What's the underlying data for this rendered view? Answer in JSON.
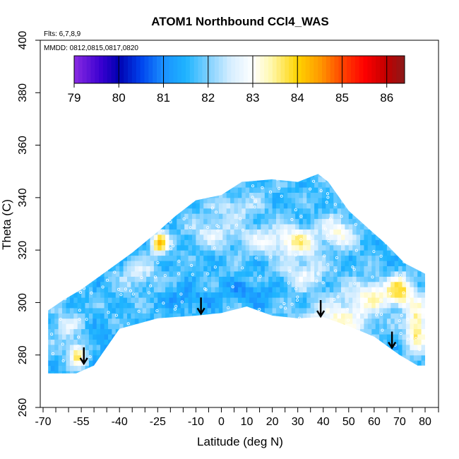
{
  "chart_data": {
    "type": "heatmap",
    "title": "ATOM1 Northbound CCl4_WAS",
    "subtitle_flights": "Flts: 6,7,8,9",
    "subtitle_dates": "MMDD: 0812,0815,0817,0820",
    "xlabel": "Latitude (deg N)",
    "ylabel": "Theta (C)",
    "xlim": [
      -70,
      80
    ],
    "ylim": [
      260,
      400
    ],
    "x_tick_labels": [
      "-70",
      "-55",
      "-40",
      "-25",
      "-10",
      "0",
      "10",
      "20",
      "30",
      "40",
      "50",
      "60",
      "70",
      "80"
    ],
    "x_tick_values": [
      -70,
      -55,
      -40,
      -25,
      -10,
      0,
      10,
      20,
      30,
      40,
      50,
      60,
      70,
      80
    ],
    "x_minor_ticks": [
      -65,
      -60,
      -50,
      -45,
      -35,
      -30,
      -20,
      -15,
      -5,
      5,
      15,
      25,
      35,
      45,
      55,
      65,
      75
    ],
    "y_tick_labels": [
      "260",
      "280",
      "300",
      "320",
      "340",
      "360",
      "380",
      "400"
    ],
    "y_tick_values": [
      260,
      280,
      300,
      320,
      340,
      360,
      380,
      400
    ],
    "colorbar": {
      "min": 79,
      "max": 86.4,
      "tick_labels": [
        "79",
        "80",
        "81",
        "82",
        "83",
        "84",
        "85",
        "86"
      ],
      "tick_values": [
        79,
        80,
        81,
        82,
        83,
        84,
        85,
        86
      ],
      "stops": [
        {
          "value": 79.0,
          "color": "#8a2be2"
        },
        {
          "value": 79.6,
          "color": "#3a00d0"
        },
        {
          "value": 80.0,
          "color": "#0000b0"
        },
        {
          "value": 80.5,
          "color": "#0044ee"
        },
        {
          "value": 81.0,
          "color": "#1a90ff"
        },
        {
          "value": 81.5,
          "color": "#1eb4ff"
        },
        {
          "value": 82.0,
          "color": "#7fd0ff"
        },
        {
          "value": 82.5,
          "color": "#d6eeff"
        },
        {
          "value": 83.0,
          "color": "#ffffff"
        },
        {
          "value": 83.4,
          "color": "#fff8b0"
        },
        {
          "value": 84.0,
          "color": "#ffd400"
        },
        {
          "value": 84.5,
          "color": "#ff9a00"
        },
        {
          "value": 85.0,
          "color": "#ff4500"
        },
        {
          "value": 85.5,
          "color": "#ff0000"
        },
        {
          "value": 86.0,
          "color": "#c00000"
        },
        {
          "value": 86.4,
          "color": "#8b1a1a"
        }
      ]
    },
    "domain_envelope": {
      "lower": [
        [
          -68,
          273
        ],
        [
          -57,
          273
        ],
        [
          -50,
          276
        ],
        [
          -40,
          290
        ],
        [
          -25,
          294
        ],
        [
          -10,
          295
        ],
        [
          0,
          296
        ],
        [
          10,
          298.5
        ],
        [
          20,
          295
        ],
        [
          30,
          294
        ],
        [
          40,
          294.5
        ],
        [
          50,
          291
        ],
        [
          60,
          287
        ],
        [
          70,
          280
        ],
        [
          77,
          276
        ],
        [
          80,
          276
        ]
      ],
      "upper": [
        [
          -68,
          297
        ],
        [
          -62,
          301
        ],
        [
          -55,
          305
        ],
        [
          -45,
          312
        ],
        [
          -35,
          319
        ],
        [
          -25,
          327
        ],
        [
          -18,
          333
        ],
        [
          -10,
          339
        ],
        [
          0,
          341
        ],
        [
          8,
          346
        ],
        [
          20,
          347
        ],
        [
          30,
          346
        ],
        [
          38,
          349
        ],
        [
          42,
          346
        ],
        [
          50,
          335
        ],
        [
          58,
          328
        ],
        [
          65,
          322
        ],
        [
          72,
          315
        ],
        [
          80,
          311
        ],
        [
          80,
          276
        ]
      ]
    },
    "field_model": {
      "base": 81.7,
      "features": [
        {
          "lat": -25,
          "theta": 322,
          "sx": 2.5,
          "sy": 3,
          "amp": 2.4
        },
        {
          "lat": -57,
          "theta": 279,
          "sx": 2.5,
          "sy": 3,
          "amp": 2.2
        },
        {
          "lat": 18,
          "theta": 323,
          "sx": 8,
          "sy": 4,
          "amp": 1.0
        },
        {
          "lat": 30,
          "theta": 322,
          "sx": 5,
          "sy": 4,
          "amp": 1.4
        },
        {
          "lat": 45,
          "theta": 326,
          "sx": 5,
          "sy": 4,
          "amp": 1.3
        },
        {
          "lat": 32,
          "theta": 310,
          "sx": 6,
          "sy": 4,
          "amp": 1.0
        },
        {
          "lat": 45,
          "theta": 292,
          "sx": 9,
          "sy": 5,
          "amp": 1.5
        },
        {
          "lat": 60,
          "theta": 302,
          "sx": 8,
          "sy": 4,
          "amp": 1.5
        },
        {
          "lat": 76,
          "theta": 290,
          "sx": 3,
          "sy": 7,
          "amp": 2.0
        },
        {
          "lat": 70,
          "theta": 304,
          "sx": 3,
          "sy": 4,
          "amp": 1.5
        },
        {
          "lat": -5,
          "theta": 326,
          "sx": 6,
          "sy": 4,
          "amp": 0.9
        },
        {
          "lat": -33,
          "theta": 310,
          "sx": 5,
          "sy": 4,
          "amp": 0.8
        },
        {
          "lat": 5,
          "theta": 336,
          "sx": 6,
          "sy": 3,
          "amp": 0.8
        },
        {
          "lat": -62,
          "theta": 290,
          "sx": 4,
          "sy": 4,
          "amp": 0.8
        },
        {
          "lat": -15,
          "theta": 300,
          "sx": 6,
          "sy": 3,
          "amp": -0.6
        },
        {
          "lat": 10,
          "theta": 303,
          "sx": 8,
          "sy": 3,
          "amp": -0.5
        },
        {
          "lat": -45,
          "theta": 282,
          "sx": 6,
          "sy": 4,
          "amp": -0.5
        }
      ]
    },
    "tropopause_markers": [
      {
        "lat": -54,
        "theta": 277
      },
      {
        "lat": -8,
        "theta": 296
      },
      {
        "lat": 39,
        "theta": 295
      },
      {
        "lat": 67,
        "theta": 283
      }
    ]
  }
}
